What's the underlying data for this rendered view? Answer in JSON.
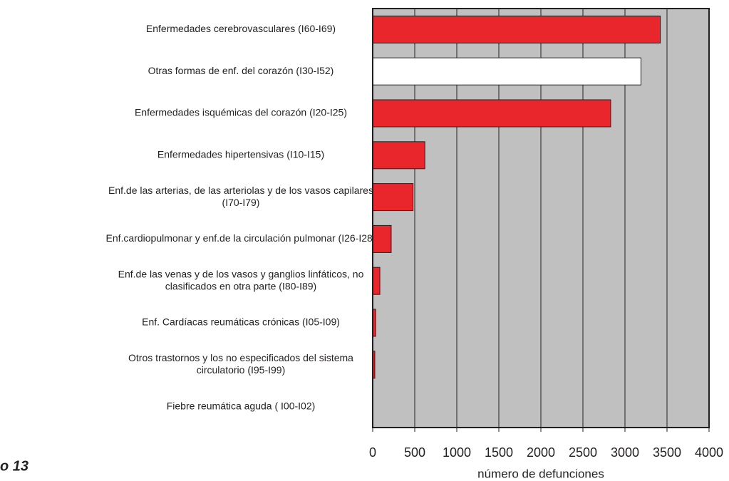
{
  "chart_data": {
    "type": "hbar",
    "figure_label": "o 13",
    "x_label": "número de defunciones",
    "categories": [
      [
        "Enfermedades cerebrovasculares (I60-I69)"
      ],
      [
        "Otras formas de enf. del corazón (I30-I52)"
      ],
      [
        "Enfermedades isquémicas del corazón (I20-I25)"
      ],
      [
        "Enfermedades hipertensivas (I10-I15)"
      ],
      [
        "Enf.de las arterias, de las arteriolas y de los vasos capilares",
        "(I70-I79)"
      ],
      [
        "Enf.cardiopulmonar y enf.de la circulación pulmonar (I26-I28)"
      ],
      [
        "Enf.de las venas y de los vasos y ganglios linfáticos, no",
        "clasificados en otra parte (I80-I89)"
      ],
      [
        "Enf. Cardíacas reumáticas crónicas (I05-I09)"
      ],
      [
        "Otros trastornos y los no especificados del sistema",
        "circulatorio (I95-I99)"
      ],
      [
        "Fiebre reumática aguda ( I00-I02)"
      ]
    ],
    "values": [
      3420,
      3190,
      2830,
      620,
      480,
      220,
      85,
      35,
      25,
      2
    ],
    "colors": [
      "#e8262b",
      "#ffffff",
      "#e8262b",
      "#e8262b",
      "#e8262b",
      "#e8262b",
      "#e8262b",
      "#e8262b",
      "#e8262b",
      "#e8262b"
    ],
    "xlim": [
      0,
      4000
    ],
    "xticks": [
      0,
      500,
      1000,
      1500,
      2000,
      2500,
      3000,
      3500,
      4000
    ],
    "grid": true,
    "plot_background": "#c0c0c0"
  }
}
